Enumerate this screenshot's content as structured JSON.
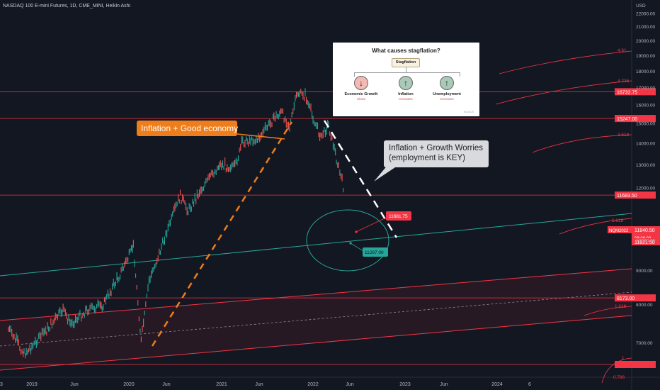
{
  "header": {
    "symbol_line": "NASDAQ 100 E-mini Futures, 1D, CME_MINI, Heikin Ashi"
  },
  "colors": {
    "background": "#131722",
    "red_line": "#f23645",
    "teal_line": "#26a69a",
    "up_candle": "#26a69a",
    "down_candle": "#ef5350",
    "orange_dash": "#ef7d1a",
    "white_dash": "#ffffff",
    "orange_callout": "#ef7d1a",
    "grey_callout": "#d9dadd"
  },
  "annotations": {
    "callout_left": "Inflation + Good economy",
    "callout_right": "Inflation + Growth Worries\n(employment is KEY)",
    "label_red": "11681.75",
    "label_teal": "11287.00"
  },
  "inset": {
    "title": "What causes stagflation?",
    "root": "Stagflation",
    "nodes": [
      {
        "label": "Economic Growth",
        "sub": "Slows",
        "arrow": "↓",
        "color": "#f4b9b4"
      },
      {
        "label": "Inflation",
        "sub": "Increases",
        "arrow": "↑",
        "color": "#a9c9b9"
      },
      {
        "label": "Unemployment",
        "sub": "Increases",
        "arrow": "↑",
        "color": "#a9c9b9"
      }
    ],
    "source": "ING/AUS"
  },
  "chart_data": {
    "type": "line",
    "title": "NASDAQ 100 E-mini Futures, 1D, CME_MINI, Heikin Ashi",
    "price_unit": "USD",
    "ylim": [
      6000,
      22700
    ],
    "y_scale": "log",
    "x_ticks": [
      "3",
      "2019",
      "Jun",
      "2020",
      "Jun",
      "2021",
      "Jun",
      "2022",
      "Jun",
      "2023",
      "Jun",
      "2024",
      "6"
    ],
    "y_ticks": [
      "22000.00",
      "21000.00",
      "20000.00",
      "19000.00",
      "18000.00",
      "17000.00",
      "16000.00",
      "15000.00",
      "14000.00",
      "13000.00",
      "12000.00",
      "10000.00",
      "9000.00",
      "8000.00",
      "7000.00"
    ],
    "series": [
      {
        "x": [
          "2018-10",
          "2018-12",
          "2019-01",
          "2019-03",
          "2019-05",
          "2019-06",
          "2019-08",
          "2019-10",
          "2019-12",
          "2020-02",
          "2020-03",
          "2020-04",
          "2020-06",
          "2020-08",
          "2020-09",
          "2020-11",
          "2021-01",
          "2021-03",
          "2021-04",
          "2021-06",
          "2021-08",
          "2021-09",
          "2021-10",
          "2021-11",
          "2021-12",
          "2022-01",
          "2022-02",
          "2022-03",
          "2022-04",
          "2022-05"
        ],
        "values": [
          7300,
          6700,
          6850,
          7300,
          7800,
          7400,
          7800,
          7900,
          8700,
          9700,
          7000,
          8600,
          10000,
          11600,
          11000,
          12000,
          12900,
          12800,
          14000,
          14100,
          15200,
          15500,
          14700,
          16600,
          16400,
          15200,
          14200,
          14800,
          13200,
          11800
        ]
      }
    ],
    "horizontal_levels": [
      {
        "label": "16732.75",
        "value": 16732.75,
        "color": "#f23645"
      },
      {
        "label": "15247.00",
        "value": 15247.0,
        "color": "#f23645"
      },
      {
        "label": "11683.50",
        "value": 11683.5,
        "color": "#f23645"
      },
      {
        "label": "8173.00",
        "value": 8173.0,
        "color": "#f23645"
      }
    ],
    "price_labels": [
      {
        "label": "NQM2022",
        "value": 11825,
        "color": "#f23645"
      },
      {
        "label": "11840.50",
        "value": 11840.5,
        "color": "#f23645"
      },
      {
        "label": "11821.50",
        "value": 11821.5,
        "color": "#f23645"
      },
      {
        "label": "08:06:03",
        "value": 11800,
        "color": "#f23645"
      }
    ],
    "fib_labels": [
      "4.61",
      "4.236",
      "3.618",
      "2.618",
      "1.618",
      "1",
      "0.786"
    ]
  }
}
